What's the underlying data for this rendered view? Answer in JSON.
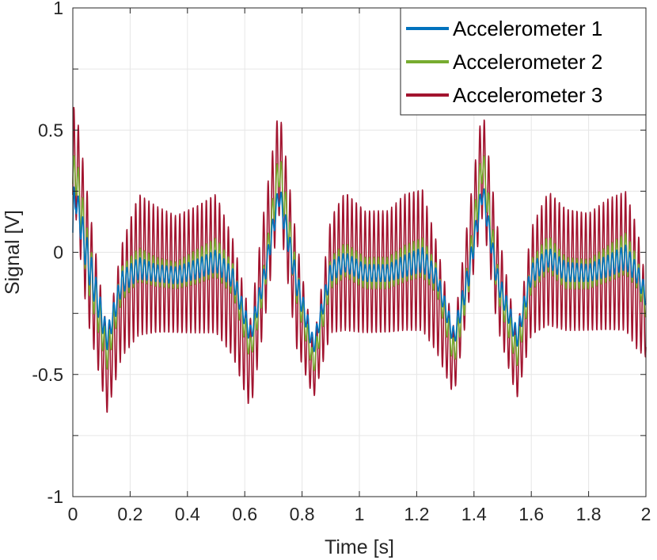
{
  "chart_data": {
    "type": "line",
    "title": "",
    "xlabel": "Time [s]",
    "ylabel": "Signal [V]",
    "xlim": [
      0,
      2
    ],
    "ylim": [
      -1,
      1
    ],
    "x_ticks": [
      0,
      0.2,
      0.4,
      0.6,
      0.8,
      1,
      1.2,
      1.4,
      1.6,
      1.8,
      2
    ],
    "x_tick_labels": [
      "0",
      "0.2",
      "0.4",
      "0.6",
      "0.8",
      "1",
      "1.2",
      "1.4",
      "1.6",
      "1.8",
      "2"
    ],
    "y_ticks": [
      -1,
      -0.5,
      0,
      0.5,
      1
    ],
    "y_tick_labels": [
      "-1",
      "-0.5",
      "0",
      "0.5",
      "1"
    ],
    "grid": true,
    "legend_position": "top-right",
    "envelope_x": [
      0,
      0.01,
      0.05,
      0.12,
      0.17,
      0.23,
      0.29,
      0.36,
      0.43,
      0.5,
      0.56,
      0.62,
      0.67,
      0.72,
      0.78,
      0.84,
      0.9,
      0.95,
      1.02,
      1.1,
      1.16,
      1.22,
      1.27,
      1.33,
      1.38,
      1.43,
      1.48,
      1.55,
      1.6,
      1.66,
      1.72,
      1.8,
      1.87,
      1.93,
      1.97,
      2
    ],
    "series": [
      {
        "name": "Accelerometer 3",
        "color": "#A2142F",
        "upper": [
          0.59,
          0.6,
          0.25,
          -0.33,
          0.03,
          0.24,
          0.19,
          0.15,
          0.19,
          0.24,
          0.05,
          -0.27,
          0.2,
          0.6,
          0.06,
          -0.38,
          0.14,
          0.25,
          0.17,
          0.17,
          0.24,
          0.26,
          0.04,
          -0.31,
          0.15,
          0.6,
          0.12,
          -0.33,
          0.1,
          0.25,
          0.18,
          0.16,
          0.22,
          0.25,
          0.1,
          -0.12
        ],
        "lower": [
          -0.12,
          0.15,
          -0.27,
          -0.66,
          -0.43,
          -0.34,
          -0.33,
          -0.33,
          -0.33,
          -0.33,
          -0.43,
          -0.65,
          -0.28,
          0.15,
          -0.39,
          -0.6,
          -0.33,
          -0.32,
          -0.33,
          -0.33,
          -0.32,
          -0.32,
          -0.41,
          -0.59,
          -0.22,
          0.15,
          -0.3,
          -0.6,
          -0.34,
          -0.3,
          -0.32,
          -0.32,
          -0.32,
          -0.32,
          -0.4,
          -0.43
        ]
      },
      {
        "name": "Accelerometer 2",
        "color": "#77AC30",
        "upper": [
          0.38,
          0.42,
          0.1,
          -0.36,
          -0.06,
          0.02,
          -0.02,
          -0.04,
          0.01,
          0.06,
          -0.05,
          -0.35,
          -0.03,
          0.43,
          -0.05,
          -0.42,
          -0.02,
          0.04,
          -0.02,
          -0.02,
          0.03,
          0.06,
          -0.05,
          -0.36,
          -0.03,
          0.45,
          -0.04,
          -0.37,
          -0.03,
          0.07,
          -0.02,
          -0.03,
          0.03,
          0.08,
          -0.02,
          -0.2
        ],
        "lower": [
          0.18,
          0.25,
          -0.14,
          -0.48,
          -0.2,
          -0.12,
          -0.14,
          -0.15,
          -0.13,
          -0.1,
          -0.18,
          -0.45,
          -0.16,
          0.27,
          -0.2,
          -0.5,
          -0.15,
          -0.1,
          -0.15,
          -0.15,
          -0.12,
          -0.1,
          -0.17,
          -0.47,
          -0.18,
          0.3,
          -0.18,
          -0.47,
          -0.16,
          -0.08,
          -0.15,
          -0.15,
          -0.12,
          -0.09,
          -0.15,
          -0.27
        ]
      },
      {
        "name": "Accelerometer 1",
        "color": "#0072BD",
        "upper": [
          0.26,
          0.28,
          0.06,
          -0.31,
          -0.08,
          -0.02,
          -0.05,
          -0.06,
          -0.03,
          0.01,
          -0.07,
          -0.3,
          -0.05,
          0.29,
          -0.07,
          -0.35,
          -0.04,
          0.0,
          -0.05,
          -0.05,
          -0.01,
          0.02,
          -0.07,
          -0.31,
          -0.05,
          0.3,
          -0.06,
          -0.31,
          -0.05,
          0.02,
          -0.04,
          -0.05,
          -0.01,
          0.03,
          -0.05,
          -0.14
        ],
        "lower": [
          -0.1,
          0.17,
          -0.1,
          -0.4,
          -0.17,
          -0.11,
          -0.12,
          -0.13,
          -0.11,
          -0.08,
          -0.15,
          -0.38,
          -0.13,
          0.19,
          -0.17,
          -0.42,
          -0.12,
          -0.08,
          -0.12,
          -0.12,
          -0.1,
          -0.08,
          -0.14,
          -0.39,
          -0.15,
          0.21,
          -0.15,
          -0.39,
          -0.13,
          -0.06,
          -0.12,
          -0.12,
          -0.1,
          -0.07,
          -0.13,
          -0.22
        ]
      }
    ]
  }
}
